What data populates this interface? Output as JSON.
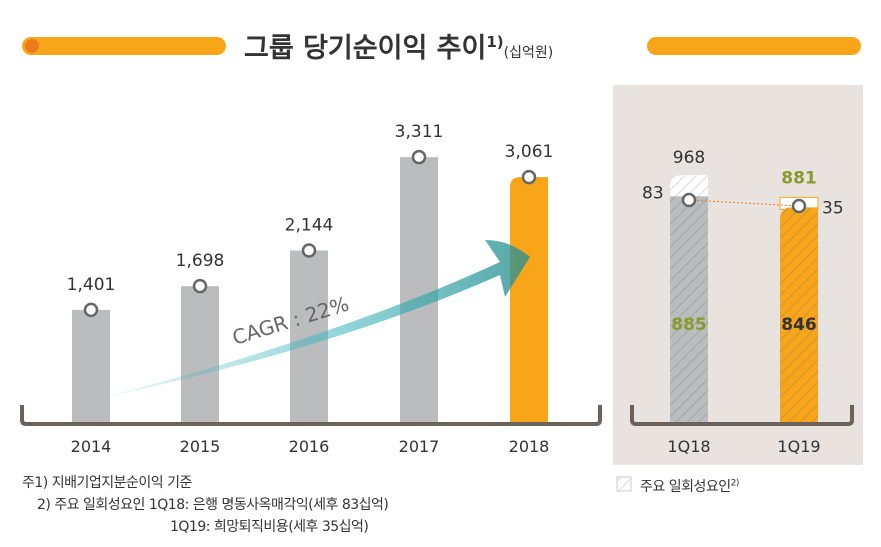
{
  "title": {
    "main": "그룹 당기순이익 추이",
    "sup": "1)",
    "unit": "(십억원)"
  },
  "colors": {
    "gray": "#bbbcbe",
    "orange": "#f9a51a",
    "olive": "#8a9a2c",
    "panel": "#e9e3df",
    "bracket": "#6b625c",
    "teal": "#3fb6bd"
  },
  "chart_data": [
    {
      "type": "bar",
      "categories": [
        "2014",
        "2015",
        "2016",
        "2017",
        "2018"
      ],
      "values": [
        1401,
        1698,
        2144,
        3311,
        3061
      ],
      "highlight": "2018",
      "annotation": "CAGR : 22%"
    },
    {
      "type": "bar",
      "stacked": true,
      "categories": [
        "1Q18",
        "1Q19"
      ],
      "series": [
        {
          "values": [
            885,
            846
          ]
        },
        {
          "values": [
            83,
            35
          ]
        }
      ],
      "totals": [
        968,
        881
      ]
    }
  ],
  "legend": {
    "label": "주요 일회성요인",
    "sup": "2)"
  },
  "notes": [
    "주1) 지배기업지분순이익 기준",
    "2) 주요 일회성요인 1Q18: 은행 명동사옥매각익(세후 83십억)",
    "1Q19: 희망퇴직비용(세후 35십억)"
  ]
}
